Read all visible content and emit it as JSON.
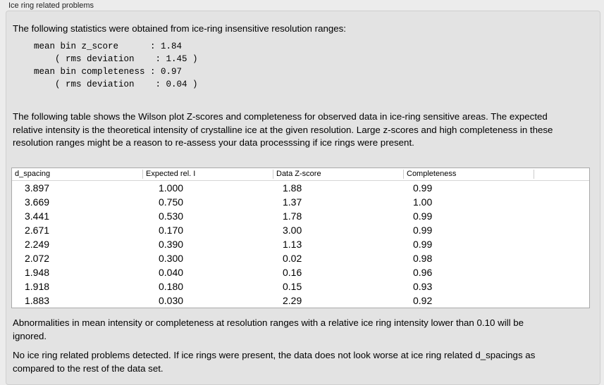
{
  "group_title": "Ice ring related problems",
  "intro": "The following statistics were obtained from ice-ring insensitive resolution ranges:",
  "stats": "mean bin z_score      : 1.84\n    ( rms deviation    : 1.45 )\nmean bin completeness : 0.97\n    ( rms deviation    : 0.04 )",
  "table_desc": "The following table shows the Wilson plot Z-scores and completeness for observed data in ice-ring sensitive areas. The expected relative intensity is the theoretical intensity of crystalline ice at the given resolution. Large z-scores and high completeness in these resolution ranges might be a reason to re-assess your data processsing if ice rings were present.",
  "columns": [
    "d_spacing",
    "Expected rel. I",
    "Data Z-score",
    "Completeness"
  ],
  "rows": [
    [
      "3.897",
      "1.000",
      "1.88",
      "0.99"
    ],
    [
      "3.669",
      "0.750",
      "1.37",
      "1.00"
    ],
    [
      "3.441",
      "0.530",
      "1.78",
      "0.99"
    ],
    [
      "2.671",
      "0.170",
      "3.00",
      "0.99"
    ],
    [
      "2.249",
      "0.390",
      "1.13",
      "0.99"
    ],
    [
      "2.072",
      "0.300",
      "0.02",
      "0.98"
    ],
    [
      "1.948",
      "0.040",
      "0.16",
      "0.96"
    ],
    [
      "1.918",
      "0.180",
      "0.15",
      "0.93"
    ],
    [
      "1.883",
      "0.030",
      "2.29",
      "0.92"
    ]
  ],
  "note": "Abnormalities in mean intensity or completeness at resolution ranges with a relative ice ring intensity lower than 0.10 will be ignored.",
  "conclusion": "No ice ring related problems detected. If ice rings were present, the data does not look worse at ice ring related d_spacings as compared to the rest of the data set."
}
